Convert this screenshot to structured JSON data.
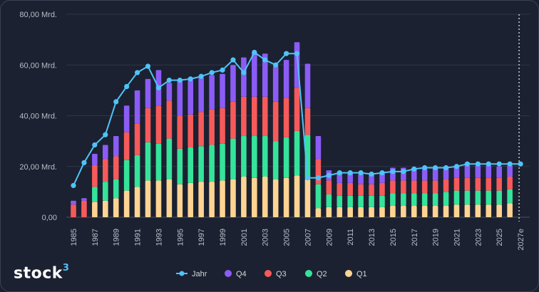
{
  "brand": {
    "name": "stock",
    "mark": "3"
  },
  "chart_data": {
    "type": "bar",
    "stacked": true,
    "x": [
      "1985",
      "1986",
      "1987",
      "1988",
      "1989",
      "1990",
      "1991",
      "1992",
      "1993",
      "1994",
      "1995",
      "1996",
      "1997",
      "1998",
      "1999",
      "2000",
      "2001",
      "2002",
      "2003",
      "2004",
      "2005",
      "2006",
      "2007",
      "2008",
      "2009",
      "2010",
      "2011",
      "2012",
      "2013",
      "2014",
      "2015",
      "2016",
      "2017",
      "2018",
      "2019",
      "2020",
      "2021",
      "2022",
      "2023",
      "2024",
      "2025",
      "2026",
      "2027e"
    ],
    "x_tick_labels": [
      "1985",
      "1987",
      "1989",
      "1991",
      "1993",
      "1995",
      "1997",
      "1999",
      "2001",
      "2003",
      "2005",
      "2007",
      "2009",
      "2011",
      "2013",
      "2015",
      "2017",
      "2019",
      "2021",
      "2023",
      "2025",
      "2027e"
    ],
    "ylim": [
      0,
      80
    ],
    "y_ticks": [
      0,
      20,
      40,
      60,
      80
    ],
    "y_tick_labels": [
      "0,00",
      "20,00 Mrd.",
      "40,00 Mrd.",
      "60,00 Mrd.",
      "80,00 Mrd."
    ],
    "grid": true,
    "forecast_marker": "2027e",
    "legend_position": "bottom",
    "colors": {
      "Q1": "#ffd493",
      "Q2": "#35e39b",
      "Q3": "#f65a5a",
      "Q4": "#8b5cf6",
      "Jahr": "#4fc3f7"
    },
    "series": [
      {
        "name": "Q1",
        "type": "bar",
        "values": [
          null,
          null,
          6.0,
          6.5,
          7.5,
          10.5,
          12,
          14.5,
          14.5,
          15,
          13,
          13.5,
          14,
          14,
          14.5,
          15,
          16,
          15.5,
          16,
          15,
          15.5,
          16.5,
          15,
          3.5,
          4,
          4,
          4,
          4,
          4,
          4,
          4.5,
          4.5,
          4.5,
          4.5,
          4.5,
          4.5,
          5,
          5,
          5,
          5,
          5,
          5.5,
          null
        ]
      },
      {
        "name": "Q2",
        "type": "bar",
        "values": [
          null,
          null,
          6.0,
          7.5,
          7.5,
          12.0,
          12.5,
          15,
          14.5,
          16,
          14,
          14,
          14,
          14.5,
          14.5,
          16,
          16,
          16.5,
          16,
          15,
          16,
          17.5,
          17.5,
          9.5,
          5,
          4.5,
          4.5,
          4.5,
          4.5,
          4.5,
          5,
          5,
          5,
          5,
          5,
          5.5,
          5.5,
          5.5,
          5.5,
          5.5,
          5.5,
          5.5,
          null
        ]
      },
      {
        "name": "Q3",
        "type": "bar",
        "values": [
          5.0,
          6.5,
          8.5,
          9.0,
          9.0,
          11.0,
          12.5,
          13.5,
          15,
          15,
          13,
          13,
          13.5,
          14,
          14,
          14.5,
          15.5,
          15.5,
          15.5,
          15.5,
          15.5,
          17,
          10.5,
          10,
          5.5,
          5,
          5,
          4.5,
          4.5,
          5,
          5,
          5,
          5,
          5,
          5,
          5,
          5,
          5,
          5,
          5,
          5,
          5,
          null
        ]
      },
      {
        "name": "Q4",
        "type": "bar",
        "values": [
          1.5,
          1.0,
          4.5,
          5.5,
          8.0,
          10.5,
          13.0,
          11.5,
          14,
          7,
          14,
          13.5,
          13.5,
          13.5,
          13.5,
          14.5,
          15.5,
          17.5,
          17,
          14,
          15,
          18,
          17.5,
          9,
          4,
          4,
          4,
          4,
          4,
          4,
          5,
          5,
          5,
          4.5,
          5,
          5,
          5,
          5,
          5,
          5,
          4.5,
          4.5,
          null
        ]
      },
      {
        "name": "Jahr",
        "type": "line",
        "values": [
          12.5,
          21.5,
          28.5,
          32.5,
          45.5,
          51.5,
          57.0,
          59.5,
          51,
          54,
          54,
          54.5,
          55.5,
          57,
          58,
          62,
          57,
          65,
          62,
          60,
          64.5,
          64.5,
          15.5,
          15.5,
          16.5,
          17.5,
          17.5,
          17.5,
          17,
          17.5,
          18,
          18,
          19,
          19.5,
          19.5,
          19.5,
          20,
          21,
          21,
          21,
          21,
          21,
          21
        ]
      }
    ]
  }
}
